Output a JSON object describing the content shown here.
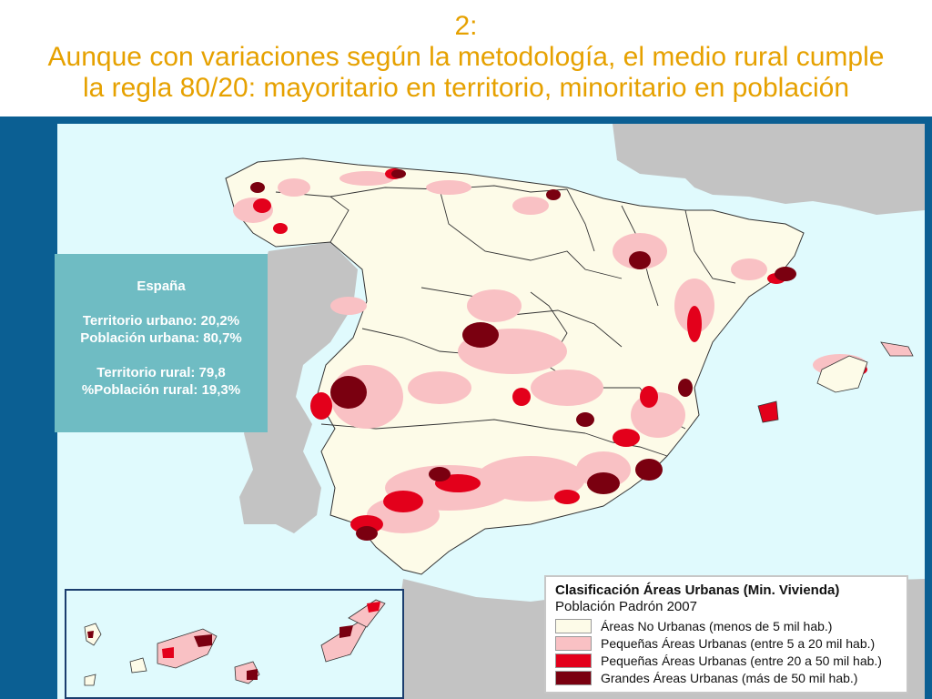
{
  "title": {
    "number": "2:",
    "line1": "Aunque con variaciones según la metodología, el medio rural cumple",
    "line2": "la regla 80/20: mayoritario en territorio, minoritario en población"
  },
  "infobox": {
    "heading": "España",
    "urban_territory": "Territorio urbano: 20,2%",
    "urban_population": "Población urbana: 80,7%",
    "rural_territory": "Territorio rural: 79,8",
    "rural_population": "%Población rural: 19,3%"
  },
  "legend": {
    "title": "Clasificación Áreas Urbanas (Min. Vivienda)",
    "subtitle": "Población Padrón 2007",
    "items": [
      {
        "label": "Áreas No Urbanas (menos de 5 mil hab.)",
        "color": "#fdfbe8"
      },
      {
        "label": "Pequeñas Áreas Urbanas (entre 5 a 20 mil hab.)",
        "color": "#f9c1c4"
      },
      {
        "label": "Pequeñas Áreas Urbanas (entre 20 a 50 mil hab.)",
        "color": "#e3001b"
      },
      {
        "label": "Grandes Áreas Urbanas (más de 50 mil hab.)",
        "color": "#7a0010"
      }
    ]
  },
  "colors": {
    "title_text": "#e6a100",
    "frame": "#0b5f93",
    "sea": "#e0fafd",
    "neighbor_land": "#c3c3c3",
    "infobox_bg": "#6fbcc3"
  }
}
